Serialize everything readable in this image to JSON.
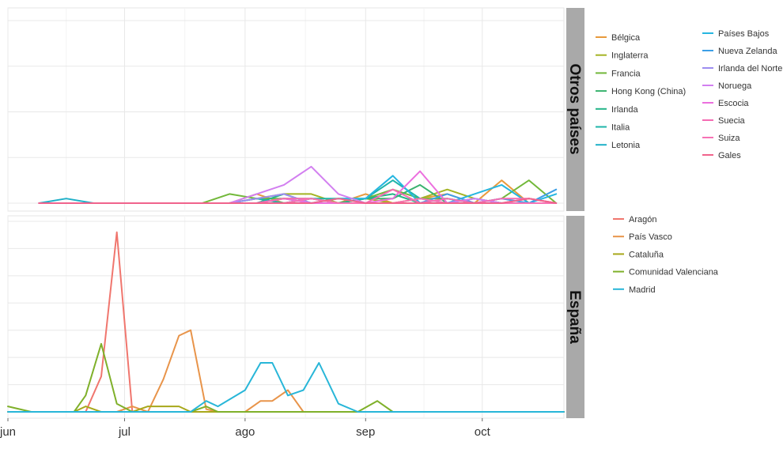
{
  "chart_data": {
    "type": "line",
    "x_tick_labels": [
      "jun",
      "jul",
      "ago",
      "sep",
      "oct"
    ],
    "x_ticks": [
      "2020-06-01",
      "2020-07-01",
      "2020-08-01",
      "2020-09-01",
      "2020-10-01"
    ],
    "x_range": [
      "2020-06-01",
      "2020-10-22"
    ],
    "grid": true,
    "legend_placement": "right",
    "panels": [
      {
        "strip_label": "Otros países",
        "ylim": [
          0,
          4
        ],
        "x": [
          "2020-06-09",
          "2020-06-16",
          "2020-06-23",
          "2020-06-30",
          "2020-07-07",
          "2020-07-14",
          "2020-07-21",
          "2020-07-28",
          "2020-08-04",
          "2020-08-11",
          "2020-08-18",
          "2020-08-25",
          "2020-09-01",
          "2020-09-08",
          "2020-09-15",
          "2020-09-22",
          "2020-09-29",
          "2020-10-06",
          "2020-10-13",
          "2020-10-20"
        ],
        "series": [
          {
            "name": "Bélgica",
            "color": "#e89a3c",
            "values": [
              0,
              0,
              0,
              0,
              0,
              0,
              0,
              0,
              0.2,
              0,
              0.1,
              0,
              0.2,
              0,
              0.1,
              0.2,
              0,
              0.5,
              0,
              0
            ]
          },
          {
            "name": "Inglaterra",
            "color": "#a4b424",
            "values": [
              0,
              0,
              0,
              0,
              0,
              0,
              0,
              0,
              0.1,
              0.2,
              0.2,
              0,
              0.1,
              0,
              0.1,
              0.3,
              0.1,
              0,
              0.1,
              0
            ]
          },
          {
            "name": "Francia",
            "color": "#72b83a",
            "values": [
              0,
              0,
              0,
              0,
              0,
              0,
              0,
              0.2,
              0.1,
              0.1,
              0.1,
              0,
              0.1,
              0.3,
              0.1,
              0.1,
              0,
              0.1,
              0.5,
              0
            ]
          },
          {
            "name": "Hong Kong (China)",
            "color": "#39b26e",
            "values": [
              0,
              0,
              0,
              0,
              0,
              0,
              0,
              0,
              0.1,
              0,
              0.1,
              0,
              0.1,
              0.1,
              0.4,
              0,
              0,
              0,
              0,
              0
            ]
          },
          {
            "name": "Irlanda",
            "color": "#23b488",
            "values": [
              0,
              0,
              0,
              0,
              0,
              0,
              0,
              0,
              0,
              0.2,
              0,
              0,
              0.1,
              0.2,
              0,
              0.1,
              0,
              0,
              0,
              0
            ]
          },
          {
            "name": "Italia",
            "color": "#1fb5a8",
            "values": [
              0,
              0,
              0,
              0,
              0,
              0,
              0,
              0,
              0.1,
              0,
              0.1,
              0.1,
              0.1,
              0.5,
              0.1,
              0,
              0.1,
              0,
              0,
              0
            ]
          },
          {
            "name": "Letonia",
            "color": "#1fb0c8",
            "values": [
              0,
              0.1,
              0,
              0,
              0,
              0,
              0,
              0,
              0,
              0,
              0,
              0,
              0,
              0,
              0,
              0,
              0,
              0,
              0,
              0
            ]
          },
          {
            "name": "Países Bajos",
            "color": "#26b6e0",
            "values": [
              0,
              0,
              0,
              0,
              0,
              0,
              0,
              0,
              0,
              0,
              0,
              0.1,
              0.1,
              0.6,
              0,
              0,
              0.2,
              0.4,
              0,
              0.2
            ]
          },
          {
            "name": "Nueva Zelanda",
            "color": "#3c9fe6",
            "values": [
              0,
              0,
              0,
              0,
              0,
              0,
              0,
              0,
              0,
              0.1,
              0,
              0,
              0,
              0,
              0,
              0.2,
              0,
              0.1,
              0,
              0.3
            ]
          },
          {
            "name": "Irlanda del Norte",
            "color": "#9d8df0",
            "values": [
              0,
              0,
              0,
              0,
              0,
              0,
              0,
              0,
              0.1,
              0.2,
              0,
              0,
              0,
              0,
              0,
              0,
              0.1,
              0,
              0,
              0
            ]
          },
          {
            "name": "Noruega",
            "color": "#d27ff0",
            "values": [
              0,
              0,
              0,
              0,
              0,
              0,
              0,
              0,
              0.2,
              0.4,
              0.8,
              0.2,
              0,
              0,
              0,
              0,
              0.1,
              0,
              0,
              0
            ]
          },
          {
            "name": "Escocia",
            "color": "#ec6fde",
            "values": [
              0,
              0,
              0,
              0,
              0,
              0,
              0,
              0,
              0,
              0.1,
              0,
              0,
              0,
              0.1,
              0.7,
              0,
              0,
              0,
              0.1,
              0
            ]
          },
          {
            "name": "Suecia",
            "color": "#f56bb3",
            "values": [
              0,
              0,
              0,
              0,
              0,
              0,
              0,
              0,
              0,
              0.1,
              0.1,
              0,
              0,
              0.3,
              0,
              0.1,
              0,
              0.1,
              0.1,
              0
            ]
          },
          {
            "name": "Suiza",
            "color": "#f772b5",
            "values": [
              0,
              0,
              0,
              0,
              0,
              0,
              0,
              0,
              0,
              0,
              0.1,
              0,
              0,
              0,
              0.1,
              0,
              0,
              0,
              0,
              0
            ]
          },
          {
            "name": "Gales",
            "color": "#f0638c",
            "values": [
              0,
              0,
              0,
              0,
              0,
              0,
              0,
              0,
              0,
              0,
              0,
              0.1,
              0,
              0,
              0,
              0,
              0,
              0,
              0.1,
              0
            ]
          }
        ]
      },
      {
        "strip_label": "España",
        "ylim": [
          0,
          7
        ],
        "x": [
          "2020-06-01",
          "2020-06-07",
          "2020-06-13",
          "2020-06-18",
          "2020-06-21",
          "2020-06-25",
          "2020-06-29",
          "2020-07-03",
          "2020-07-07",
          "2020-07-11",
          "2020-07-15",
          "2020-07-18",
          "2020-07-22",
          "2020-07-25",
          "2020-08-01",
          "2020-08-05",
          "2020-08-08",
          "2020-08-12",
          "2020-08-16",
          "2020-08-20",
          "2020-08-25",
          "2020-08-30",
          "2020-09-04",
          "2020-09-08",
          "2020-10-22"
        ],
        "series": [
          {
            "name": "Aragón",
            "color": "#f0766e",
            "values": [
              0,
              0,
              0,
              0,
              0,
              1.3,
              6.6,
              0,
              0,
              0,
              0,
              0,
              0,
              0,
              0,
              0,
              0,
              0,
              0,
              0,
              0,
              0,
              0,
              0,
              0
            ]
          },
          {
            "name": "País Vasco",
            "color": "#e8944a",
            "values": [
              0,
              0,
              0,
              0,
              0,
              0,
              0,
              0.2,
              0,
              1.2,
              2.8,
              3.0,
              0.1,
              0,
              0,
              0.4,
              0.4,
              0.8,
              0,
              0,
              0,
              0,
              0,
              0,
              0
            ]
          },
          {
            "name": "Cataluña",
            "color": "#a8a81a",
            "values": [
              0,
              0,
              0,
              0,
              0.2,
              0,
              0,
              0,
              0.2,
              0.2,
              0.2,
              0,
              0,
              0,
              0,
              0,
              0,
              0,
              0,
              0,
              0,
              0,
              0,
              0,
              0
            ]
          },
          {
            "name": "Comunidad Valenciana",
            "color": "#7fb02a",
            "values": [
              0.2,
              0,
              0,
              0,
              0.6,
              2.5,
              0.3,
              0,
              0,
              0,
              0,
              0,
              0.2,
              0,
              0,
              0,
              0,
              0,
              0,
              0,
              0,
              0,
              0.4,
              0,
              0
            ]
          },
          {
            "name": "Madrid",
            "color": "#28b6d8",
            "values": [
              0,
              0,
              0,
              0,
              0,
              0,
              0,
              0,
              0,
              0,
              0,
              0,
              0.4,
              0.2,
              0.8,
              1.8,
              1.8,
              0.6,
              0.8,
              1.8,
              0.3,
              0,
              0,
              0,
              0
            ]
          }
        ]
      }
    ]
  }
}
